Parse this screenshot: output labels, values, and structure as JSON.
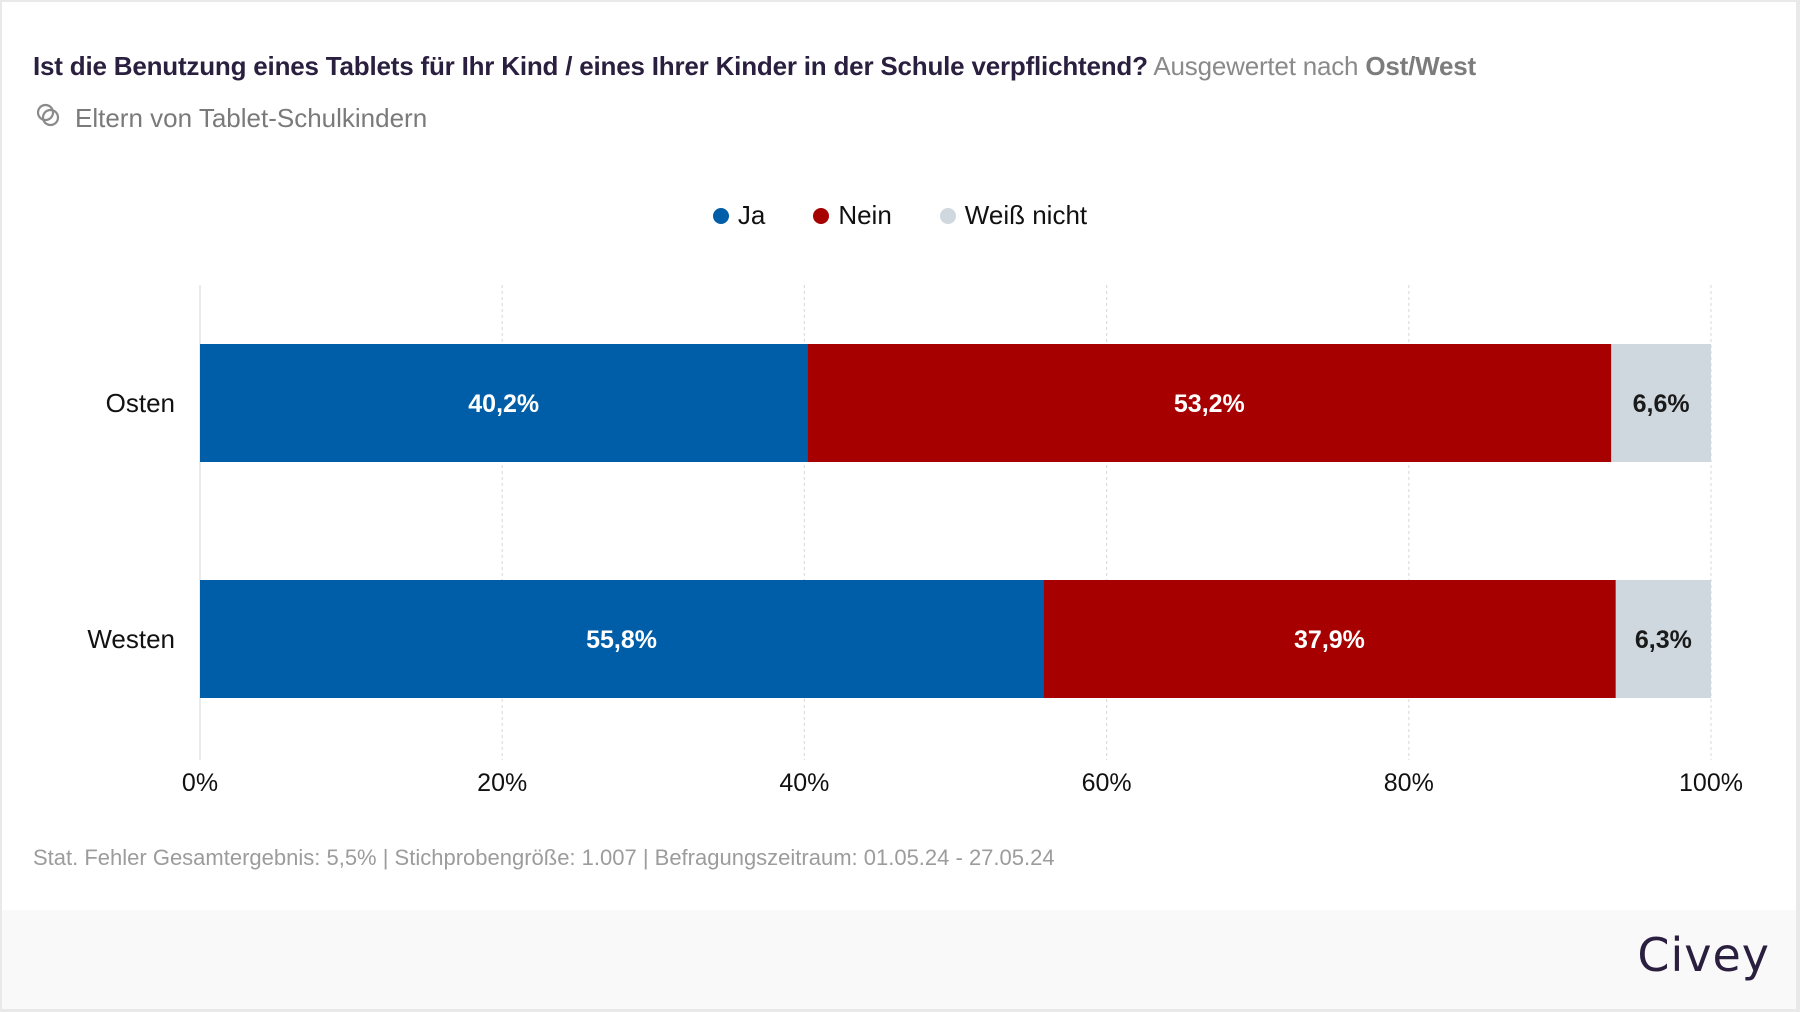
{
  "header": {
    "question": "Ist die Benutzung eines Tablets für Ihr Kind / eines Ihrer Kinder in der Schule verpflichtend?",
    "evaluated_by_prefix": "Ausgewertet nach",
    "evaluated_by_dimension": "Ost/West",
    "audience_icon": "overlapping-circles-icon",
    "audience": "Eltern von Tablet-Schulkindern"
  },
  "footer": {
    "note": "Stat. Fehler Gesamtergebnis: 5,5% | Stichprobengröße: 1.007 | Befragungszeitraum: 01.05.24 - 27.05.24",
    "logo": "Civey"
  },
  "colors": {
    "ja": "#005ea8",
    "nein": "#a60000",
    "weiss_nicht": "#d0d8df",
    "title": "#2b1f3f"
  },
  "chart_data": {
    "type": "bar",
    "orientation": "horizontal",
    "stacked": true,
    "title": "Ist die Benutzung eines Tablets für Ihr Kind / eines Ihrer Kinder in der Schule verpflichtend?",
    "categories": [
      "Osten",
      "Westen"
    ],
    "series": [
      {
        "name": "Ja",
        "color": "#005ea8",
        "label_color": "#ffffff",
        "values": [
          40.2,
          55.8
        ],
        "labels": [
          "40,2%",
          "55,8%"
        ]
      },
      {
        "name": "Nein",
        "color": "#a60000",
        "label_color": "#ffffff",
        "values": [
          53.2,
          37.9
        ],
        "labels": [
          "53,2%",
          "37,9%"
        ]
      },
      {
        "name": "Weiß nicht",
        "color": "#d0d8df",
        "label_color": "#1a1a1a",
        "values": [
          6.6,
          6.3
        ],
        "labels": [
          "6,6%",
          "6,3%"
        ]
      }
    ],
    "xlim": [
      0,
      100
    ],
    "xticks": [
      0,
      20,
      40,
      60,
      80,
      100
    ],
    "xtick_labels": [
      "0%",
      "20%",
      "40%",
      "60%",
      "80%",
      "100%"
    ],
    "xlabel": "",
    "ylabel": "",
    "grid": "vertical-dotted",
    "legend_position": "top-center"
  }
}
